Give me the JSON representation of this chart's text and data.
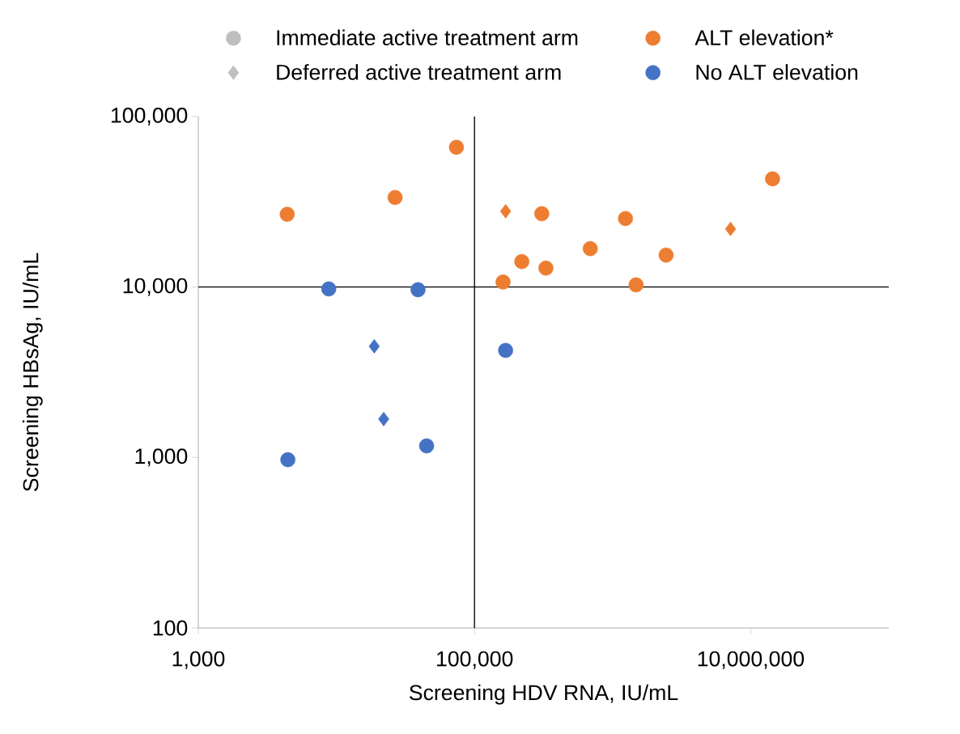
{
  "chart_data": {
    "type": "scatter",
    "xlabel": "Screening HDV RNA, IU/mL",
    "ylabel": "Screening HBsAg, IU/mL",
    "log": "xy",
    "grid": false,
    "legend": "top",
    "xlim": [
      1000,
      100000000
    ],
    "ylim": [
      100,
      100000
    ],
    "xticks": [
      {
        "value": 1000,
        "label": "1,000"
      },
      {
        "value": 100000,
        "label": "100,000"
      },
      {
        "value": 10000000,
        "label": "10,000,000"
      }
    ],
    "yticks": [
      {
        "value": 100,
        "label": "100"
      },
      {
        "value": 1000,
        "label": "1,000"
      },
      {
        "value": 10000,
        "label": "10,000"
      },
      {
        "value": 100000,
        "label": "100,000"
      }
    ],
    "ref_lines": [
      {
        "axis": "x",
        "value": 100000,
        "color": "#000000"
      },
      {
        "axis": "y",
        "value": 10000,
        "color": "#000000"
      }
    ],
    "series": [
      {
        "name": "Immediate active treatment arm",
        "color": "#bfbfbf",
        "marker": "circle"
      },
      {
        "name": "ALT elevation*",
        "color": "#ed7d31",
        "marker": "circle",
        "x": [
          4400,
          26600,
          74000,
          161000,
          220000,
          307000,
          329000,
          689000,
          1240000,
          1480000,
          2440000,
          14400000
        ],
        "values": [
          26700,
          33500,
          66000,
          10700,
          14100,
          26900,
          12900,
          16800,
          25200,
          10300,
          15400,
          43100
        ]
      },
      {
        "name": "Deferred active treatment arm",
        "color": "#bfbfbf",
        "marker": "diamond"
      },
      {
        "name": "No ALT elevation",
        "color": "#4472c4",
        "marker": "circle",
        "x": [
          8800,
          39000,
          168000,
          45000,
          4450
        ],
        "values": [
          9750,
          9640,
          4250,
          1170,
          970
        ]
      },
      {
        "color": "#ed7d31",
        "marker": "diamond",
        "x": [
          168000,
          7150000
        ],
        "values": [
          27800,
          21900
        ]
      },
      {
        "color": "#4472c4",
        "marker": "diamond",
        "x": [
          18800,
          22000
        ],
        "values": [
          4490,
          1680
        ]
      }
    ]
  }
}
